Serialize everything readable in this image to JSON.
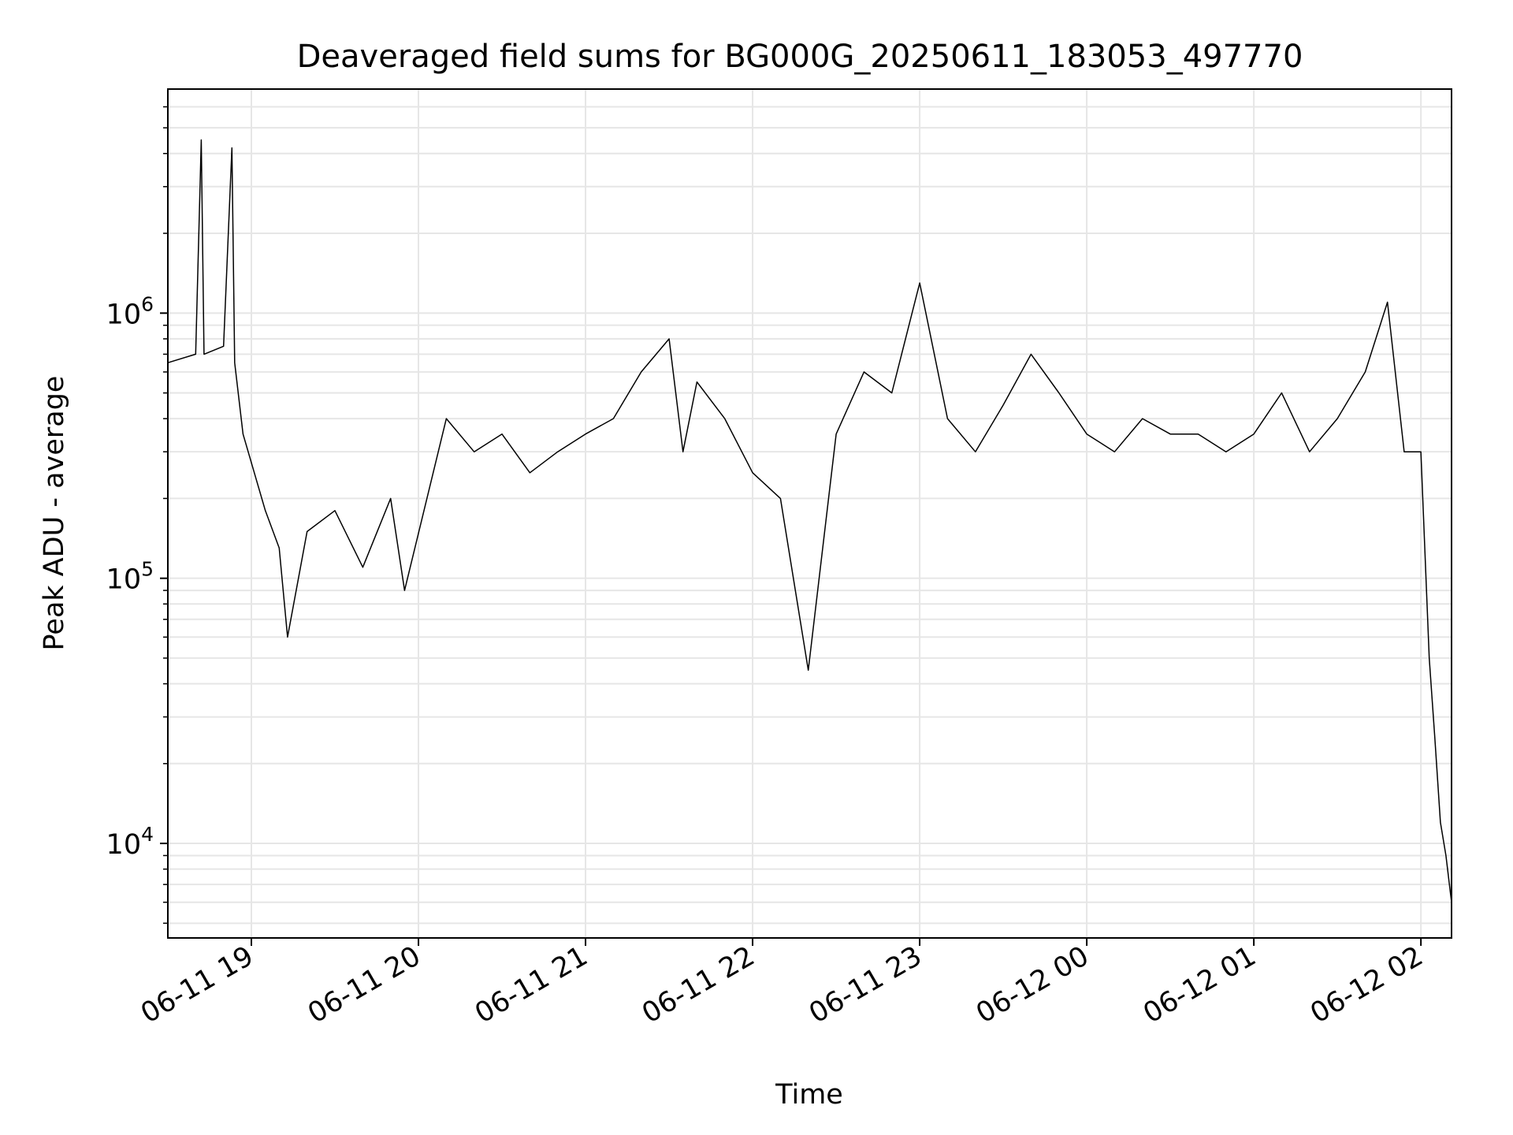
{
  "chart_data": {
    "type": "line",
    "title": "Deaveraged field sums for BG000G_20250611_183053_497770",
    "xlabel": "Time",
    "ylabel": "Peak ADU - average",
    "yscale": "log",
    "grid": true,
    "xlim": [
      "2025-06-11 18:30",
      "2025-06-12 02:11"
    ],
    "ylim": [
      4400,
      7000000
    ],
    "x_ticks": [
      {
        "value": "2025-06-11 19:00",
        "label": "06-11 19"
      },
      {
        "value": "2025-06-11 20:00",
        "label": "06-11 20"
      },
      {
        "value": "2025-06-11 21:00",
        "label": "06-11 21"
      },
      {
        "value": "2025-06-11 22:00",
        "label": "06-11 22"
      },
      {
        "value": "2025-06-11 23:00",
        "label": "06-11 23"
      },
      {
        "value": "2025-06-12 00:00",
        "label": "06-12 00"
      },
      {
        "value": "2025-06-12 01:00",
        "label": "06-12 01"
      },
      {
        "value": "2025-06-12 02:00",
        "label": "06-12 02"
      }
    ],
    "y_ticks": [
      {
        "value": 10000,
        "base": "10",
        "exp": "4"
      },
      {
        "value": 100000,
        "base": "10",
        "exp": "5"
      },
      {
        "value": 1000000,
        "base": "10",
        "exp": "6"
      }
    ],
    "series": [
      {
        "color": "#000000",
        "x": [
          "2025-06-11 18:30",
          "2025-06-11 18:40",
          "2025-06-11 18:42",
          "2025-06-11 18:43",
          "2025-06-11 18:50",
          "2025-06-11 18:53",
          "2025-06-11 18:54",
          "2025-06-11 18:57",
          "2025-06-11 19:05",
          "2025-06-11 19:10",
          "2025-06-11 19:13",
          "2025-06-11 19:20",
          "2025-06-11 19:30",
          "2025-06-11 19:40",
          "2025-06-11 19:50",
          "2025-06-11 19:55",
          "2025-06-11 20:10",
          "2025-06-11 20:20",
          "2025-06-11 20:30",
          "2025-06-11 20:40",
          "2025-06-11 20:50",
          "2025-06-11 21:00",
          "2025-06-11 21:10",
          "2025-06-11 21:20",
          "2025-06-11 21:30",
          "2025-06-11 21:35",
          "2025-06-11 21:40",
          "2025-06-11 21:50",
          "2025-06-11 22:00",
          "2025-06-11 22:10",
          "2025-06-11 22:20",
          "2025-06-11 22:30",
          "2025-06-11 22:40",
          "2025-06-11 22:50",
          "2025-06-11 23:00",
          "2025-06-11 23:10",
          "2025-06-11 23:20",
          "2025-06-11 23:30",
          "2025-06-11 23:40",
          "2025-06-11 23:50",
          "2025-06-12 00:00",
          "2025-06-12 00:10",
          "2025-06-12 00:20",
          "2025-06-12 00:30",
          "2025-06-12 00:40",
          "2025-06-12 00:50",
          "2025-06-12 01:00",
          "2025-06-12 01:10",
          "2025-06-12 01:20",
          "2025-06-12 01:30",
          "2025-06-12 01:40",
          "2025-06-12 01:48",
          "2025-06-12 01:54",
          "2025-06-12 02:00",
          "2025-06-12 02:03",
          "2025-06-12 02:05",
          "2025-06-12 02:07",
          "2025-06-12 02:09",
          "2025-06-12 02:11"
        ],
        "y": [
          650000,
          700000,
          4500000,
          700000,
          750000,
          4200000,
          650000,
          350000,
          180000,
          130000,
          60000,
          150000,
          180000,
          110000,
          200000,
          90000,
          400000,
          300000,
          350000,
          250000,
          300000,
          350000,
          400000,
          600000,
          800000,
          300000,
          550000,
          400000,
          250000,
          200000,
          45000,
          350000,
          600000,
          500000,
          1300000,
          400000,
          300000,
          450000,
          700000,
          500000,
          350000,
          300000,
          400000,
          350000,
          350000,
          300000,
          350000,
          500000,
          300000,
          400000,
          600000,
          1100000,
          300000,
          300000,
          50000,
          25000,
          12000,
          9000,
          6000
        ]
      }
    ]
  }
}
